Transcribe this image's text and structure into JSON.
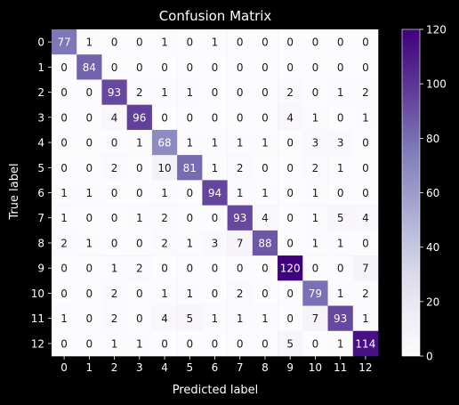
{
  "chart_data": {
    "type": "heatmap",
    "title": "Confusion Matrix",
    "xlabel": "Predicted label",
    "ylabel": "True label",
    "x_categories": [
      "0",
      "1",
      "2",
      "3",
      "4",
      "5",
      "6",
      "7",
      "8",
      "9",
      "10",
      "11",
      "12"
    ],
    "y_categories": [
      "0",
      "1",
      "2",
      "3",
      "4",
      "5",
      "6",
      "7",
      "8",
      "9",
      "10",
      "11",
      "12"
    ],
    "values": [
      [
        77,
        1,
        0,
        0,
        1,
        0,
        1,
        0,
        0,
        0,
        0,
        0,
        0
      ],
      [
        0,
        84,
        0,
        0,
        0,
        0,
        0,
        0,
        0,
        0,
        0,
        0,
        0
      ],
      [
        0,
        0,
        93,
        2,
        1,
        1,
        0,
        0,
        0,
        2,
        0,
        1,
        2
      ],
      [
        0,
        0,
        4,
        96,
        0,
        0,
        0,
        0,
        0,
        4,
        1,
        0,
        1
      ],
      [
        0,
        0,
        0,
        1,
        68,
        1,
        1,
        1,
        1,
        0,
        3,
        3,
        0
      ],
      [
        0,
        0,
        2,
        0,
        10,
        81,
        1,
        2,
        0,
        0,
        2,
        1,
        0
      ],
      [
        1,
        1,
        0,
        0,
        1,
        0,
        94,
        1,
        1,
        0,
        1,
        0,
        0
      ],
      [
        1,
        0,
        0,
        1,
        2,
        0,
        0,
        93,
        4,
        0,
        1,
        5,
        4
      ],
      [
        2,
        1,
        0,
        0,
        2,
        1,
        3,
        7,
        88,
        0,
        1,
        1,
        0
      ],
      [
        0,
        0,
        1,
        2,
        0,
        0,
        0,
        0,
        0,
        120,
        0,
        0,
        7
      ],
      [
        0,
        0,
        2,
        0,
        1,
        1,
        0,
        2,
        0,
        0,
        79,
        1,
        2
      ],
      [
        1,
        0,
        2,
        0,
        4,
        5,
        1,
        1,
        1,
        0,
        7,
        93,
        1
      ],
      [
        0,
        0,
        1,
        1,
        0,
        0,
        0,
        0,
        0,
        5,
        0,
        1,
        114
      ]
    ],
    "colormap": "Purples",
    "colorbar": {
      "range": [
        0,
        120
      ],
      "ticks": [
        "0",
        "20",
        "40",
        "60",
        "80",
        "100",
        "120"
      ]
    },
    "grid": false,
    "colors": {
      "background": "#000000",
      "text": "#ffffff",
      "cmap_low": "#fcfbfd",
      "cmap_high": "#3f007d"
    }
  }
}
